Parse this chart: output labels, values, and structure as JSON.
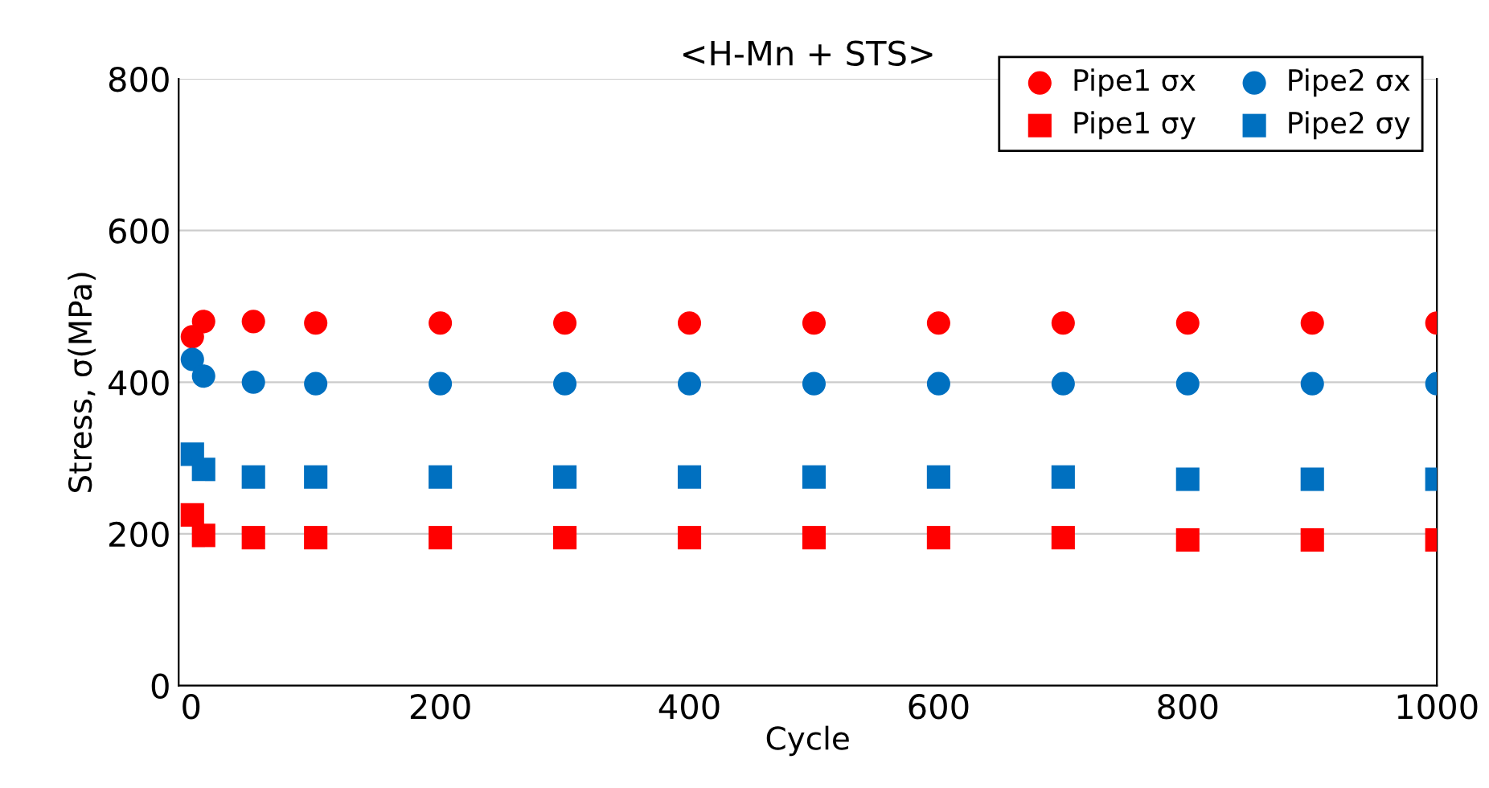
{
  "chart_data": {
    "type": "scatter",
    "title": "<H-Mn + STS>",
    "xlabel": "Cycle",
    "ylabel": "Stress, σ(MPa)",
    "x": [
      1,
      10,
      50,
      100,
      200,
      300,
      400,
      500,
      600,
      700,
      800,
      900,
      1000
    ],
    "series": [
      {
        "name": "Pipe1 σx",
        "color": "#ff0000",
        "marker": "circle",
        "values": [
          460,
          480,
          480,
          478,
          478,
          478,
          478,
          478,
          478,
          478,
          478,
          478,
          478
        ]
      },
      {
        "name": "Pipe2 σx",
        "color": "#0070c0",
        "marker": "circle",
        "values": [
          430,
          408,
          400,
          398,
          398,
          398,
          398,
          398,
          398,
          398,
          398,
          398,
          398
        ]
      },
      {
        "name": "Pipe1 σy",
        "color": "#ff0000",
        "marker": "square",
        "values": [
          225,
          198,
          195,
          195,
          195,
          195,
          195,
          195,
          195,
          195,
          192,
          192,
          192
        ]
      },
      {
        "name": "Pipe2 σy",
        "color": "#0070c0",
        "marker": "square",
        "values": [
          305,
          285,
          275,
          275,
          275,
          275,
          275,
          275,
          275,
          275,
          272,
          272,
          272
        ]
      }
    ],
    "xlim": [
      -10,
      1000
    ],
    "xticks": [
      0,
      200,
      400,
      600,
      800,
      1000
    ],
    "ylim": [
      0,
      800
    ],
    "yticks": [
      0,
      200,
      400,
      600,
      800
    ],
    "grid": "y",
    "legend": "top right"
  }
}
